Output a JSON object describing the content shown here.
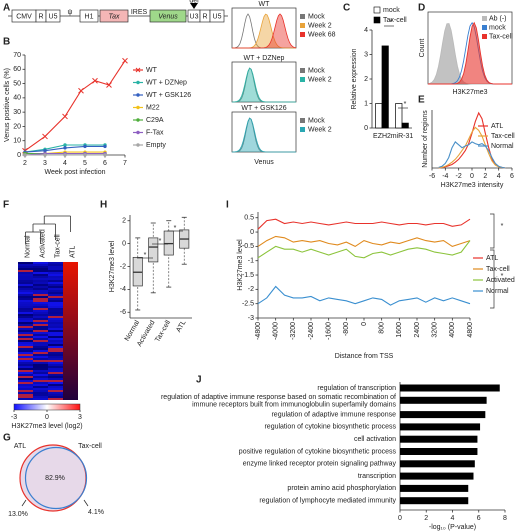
{
  "panel_labels": [
    "A",
    "B",
    "C",
    "D",
    "E",
    "F",
    "G",
    "H",
    "I",
    "J"
  ],
  "construct": {
    "elements": [
      "CMV",
      "R",
      "U5",
      "ψ",
      "H1",
      "Tax",
      "IRES",
      "Venus",
      "U3",
      "R",
      "U5"
    ],
    "deletion": "del"
  },
  "flow_venus": {
    "xlabel": "Venus",
    "panels": [
      {
        "title": "WT",
        "legend": [
          "Mock",
          "Week 2",
          "Week 68"
        ]
      },
      {
        "title": "WT + DZNep",
        "legend": [
          "Mock",
          "Week 2"
        ]
      },
      {
        "title": "WT + GSK126",
        "legend": [
          "Mock",
          "Week 2"
        ]
      }
    ]
  },
  "flow_h3k27me3": {
    "legend": [
      "Ab (-)",
      "mock",
      "Tax-cell"
    ],
    "xlabel": "H3K27me3",
    "ylabel": "Count"
  },
  "heatmap": {
    "columns": [
      "Normal",
      "Activated",
      "Tax-cell",
      "ATL"
    ],
    "colorbar_ticks": [
      -3,
      0,
      3
    ],
    "colorbar_label": "H3K27me3 level (log2)"
  },
  "venn": {
    "sets": [
      "ATL",
      "Tax-cell"
    ],
    "shares": [
      "82.9%",
      "13.0%",
      "4.1%"
    ]
  },
  "chart_data": [
    {
      "type": "line",
      "xlabel": "Week post infection",
      "ylabel": "Venus positive cells (%)",
      "xlim": [
        2,
        7
      ],
      "ylim": [
        0,
        70
      ],
      "xticks": [
        2,
        3,
        4,
        5,
        6,
        7
      ],
      "yticks": [
        0,
        10,
        20,
        30,
        40,
        50,
        60,
        70
      ],
      "legend": "right",
      "series": [
        {
          "name": "WT",
          "color": "#e8322b",
          "marker": "x",
          "x": [
            2,
            3,
            4,
            4.8,
            5.5,
            6.2,
            7
          ],
          "values": [
            3,
            13,
            27,
            45,
            52,
            49,
            66
          ]
        },
        {
          "name": "WT + DZNep",
          "color": "#2ab3a6",
          "marker": "circle",
          "x": [
            2,
            3,
            4,
            5,
            6
          ],
          "values": [
            2,
            4,
            7,
            7,
            7
          ]
        },
        {
          "name": "WT + GSK126",
          "color": "#3461c1",
          "marker": "circle",
          "x": [
            2,
            3,
            4,
            5,
            6
          ],
          "values": [
            2,
            3,
            5,
            6,
            6
          ]
        },
        {
          "name": "M22",
          "color": "#f2c21b",
          "marker": "circle",
          "x": [
            2,
            3,
            4,
            5,
            6
          ],
          "values": [
            1,
            1,
            2,
            2,
            2
          ]
        },
        {
          "name": "C29A",
          "color": "#4fae3c",
          "marker": "circle",
          "x": [
            2,
            3,
            4,
            5,
            6
          ],
          "values": [
            1,
            1,
            1,
            1,
            1
          ]
        },
        {
          "name": "F-Tax",
          "color": "#8e5fc2",
          "marker": "circle",
          "x": [
            2,
            3,
            4,
            5,
            6
          ],
          "values": [
            0,
            1,
            1,
            1,
            1
          ]
        },
        {
          "name": "Empty",
          "color": "#a6a6a6",
          "marker": "circle",
          "x": [
            2,
            3,
            4,
            5,
            6
          ],
          "values": [
            0,
            0,
            0,
            0,
            0
          ]
        }
      ]
    },
    {
      "type": "bar",
      "ylabel": "Relative expression",
      "categories": [
        "EZH2",
        "miR-31"
      ],
      "ylim": [
        0,
        4
      ],
      "yticks": [
        0,
        1,
        2,
        3,
        4
      ],
      "legend": "top",
      "annotations": [
        "*",
        "*"
      ],
      "series": [
        {
          "name": "mock",
          "color": "#ffffff",
          "values": [
            1,
            1
          ]
        },
        {
          "name": "Tax-cell",
          "color": "#000000",
          "values": [
            3.35,
            0.2
          ]
        }
      ]
    },
    {
      "type": "line",
      "xlabel": "H3K27me3 intensity",
      "ylabel": "Number of regions",
      "x": [
        -5,
        -4.5,
        -4,
        -3.5,
        -3,
        -2.5,
        -2,
        -1.5,
        -1,
        -0.5,
        0,
        0.5,
        1,
        1.5,
        2,
        2.5,
        3,
        3.5,
        4,
        4.5,
        5
      ],
      "xlim": [
        -6,
        6
      ],
      "xticks": [
        -6,
        -4,
        -2,
        0,
        2,
        4,
        6
      ],
      "ylim": [
        0,
        100
      ],
      "legend": "right",
      "series": [
        {
          "name": "ATL",
          "color": "#e8322b",
          "values": [
            0,
            1,
            2,
            4,
            6,
            10,
            15,
            22,
            30,
            42,
            60,
            80,
            95,
            85,
            60,
            35,
            15,
            6,
            2,
            1,
            0
          ]
        },
        {
          "name": "Tax-cell",
          "color": "#e8a33a",
          "values": [
            0,
            1,
            3,
            6,
            10,
            15,
            22,
            30,
            38,
            50,
            62,
            70,
            65,
            55,
            40,
            25,
            12,
            5,
            2,
            1,
            0
          ]
        },
        {
          "name": "Normal",
          "color": "#4a90c8",
          "values": [
            1,
            3,
            8,
            18,
            35,
            45,
            40,
            35,
            38,
            40,
            45,
            42,
            40,
            42,
            38,
            30,
            18,
            8,
            3,
            1,
            0
          ]
        }
      ]
    },
    {
      "type": "box",
      "ylabel": "H3K27me3 level",
      "categories": [
        "Normal",
        "Activated",
        "Tax-cell",
        "ATL"
      ],
      "ylim": [
        -6.5,
        2.5
      ],
      "yticks": [
        -6,
        -4,
        -2,
        0,
        2
      ],
      "color": "#d9d9d9",
      "annotations": [
        "*",
        "*",
        "*"
      ],
      "boxes": [
        {
          "min": -5.8,
          "q1": -3.7,
          "median": -2.5,
          "q3": -1.2,
          "max": 0.5
        },
        {
          "min": -4.3,
          "q1": -1.6,
          "median": -0.3,
          "q3": 0.5,
          "max": 1.8
        },
        {
          "min": -3.8,
          "q1": -1.0,
          "median": 0.0,
          "q3": 1.1,
          "max": 2.0
        },
        {
          "min": -1.8,
          "q1": -0.4,
          "median": 0.4,
          "q3": 1.2,
          "max": 2.3
        }
      ]
    },
    {
      "type": "line",
      "xlabel": "Distance from TSS",
      "ylabel": "H3K27me3 level",
      "x": [
        -4800,
        -4400,
        -4000,
        -3600,
        -3200,
        -2800,
        -2400,
        -2000,
        -1600,
        -1200,
        -800,
        -400,
        0,
        400,
        800,
        1200,
        1600,
        2000,
        2400,
        2800,
        3200,
        3600,
        4000,
        4400,
        4800
      ],
      "xlim": [
        -4800,
        4800
      ],
      "xticks": [
        -4800,
        -4000,
        -3200,
        -2400,
        -1600,
        -800,
        0,
        800,
        1600,
        2400,
        3200,
        4000,
        4800
      ],
      "ylim": [
        -3,
        0.7
      ],
      "yticks": [
        0.5,
        0,
        -0.5,
        -1,
        -1.5,
        -2,
        -2.5,
        -3
      ],
      "legend": "right",
      "annotations": [
        "*",
        "*"
      ],
      "series": [
        {
          "name": "ATL",
          "color": "#e8322b",
          "values": [
            0.1,
            0.4,
            0.45,
            0.3,
            0.35,
            0.3,
            0.35,
            0.3,
            0.25,
            0.3,
            0.35,
            0.3,
            0.3,
            0.3,
            0.35,
            0.3,
            0.25,
            0.3,
            0.3,
            0.25,
            0.3,
            0.3,
            0.2,
            0.25,
            0.45
          ]
        },
        {
          "name": "Tax-cell",
          "color": "#e08a1e",
          "values": [
            -0.5,
            -0.3,
            -0.15,
            -0.2,
            -0.35,
            -0.3,
            -0.35,
            -0.3,
            -0.4,
            -0.45,
            -0.35,
            -0.5,
            -0.3,
            -0.4,
            -0.45,
            -0.35,
            -0.4,
            -0.3,
            -0.2,
            -0.3,
            -0.35,
            -0.3,
            -0.5,
            -0.4,
            -0.3
          ]
        },
        {
          "name": "Activated",
          "color": "#8cc43c",
          "values": [
            -0.9,
            -0.7,
            -0.5,
            -0.6,
            -0.6,
            -0.7,
            -0.6,
            -0.7,
            -0.8,
            -0.7,
            -0.6,
            -0.85,
            -0.9,
            -0.75,
            -0.7,
            -0.8,
            -0.7,
            -0.6,
            -0.55,
            -0.6,
            -0.7,
            -0.75,
            -0.8,
            -0.7,
            -0.3
          ]
        },
        {
          "name": "Normal",
          "color": "#3a8fd0",
          "values": [
            -2.5,
            -2.3,
            -1.9,
            -2.2,
            -2.3,
            -2.3,
            -2.25,
            -2.4,
            -2.3,
            -2.35,
            -2.4,
            -2.5,
            -2.4,
            -2.3,
            -2.35,
            -2.55,
            -2.4,
            -2.35,
            -2.3,
            -2.45,
            -2.3,
            -2.4,
            -2.3,
            -2.4,
            -2.5
          ]
        }
      ]
    },
    {
      "type": "barh",
      "xlabel": "-log₁₀ (P-value)",
      "color": "#000000",
      "xlim": [
        0,
        8
      ],
      "xticks": [
        0,
        2,
        4,
        6,
        8
      ],
      "categories": [
        "regulation of transcription",
        "regulation of adaptive immune response based on somatic recombination of immune receptors built from immunoglobulin superfamily domains",
        "regulation of adaptive immune response",
        "regulation of cytokine biosynthetic process",
        "cell activation",
        "positive regulation of cytokine biosynthetic process",
        "enzyme linked receptor protein signaling pathway",
        "transcription",
        "protein amino acid phosphorylation",
        "regulation of lymphocyte mediated immunity"
      ],
      "values": [
        7.6,
        6.6,
        6.5,
        6.1,
        5.9,
        5.9,
        5.7,
        5.6,
        5.2,
        5.2
      ]
    }
  ]
}
